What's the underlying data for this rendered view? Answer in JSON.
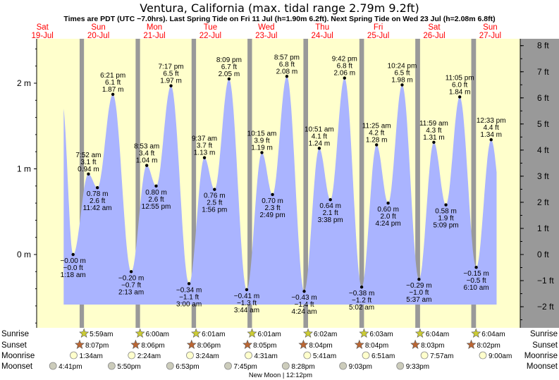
{
  "chart_data": {
    "type": "area",
    "title": "Ventura, California (max. tidal range 2.79m 9.2ft)",
    "subtitle": "Times are PDT (UTC −7.0hrs). Last Spring Tide on Fri 11 Jul (h=1.90m 6.2ft). Next Spring Tide on Wed 23 Jul (h=2.08m 6.8ft)",
    "x_range_days": [
      0,
      9
    ],
    "ylim_m": [
      -0.8,
      2.5
    ],
    "left_axis": {
      "unit": "m",
      "ticks": [
        {
          "v": 0,
          "label": "0 m"
        },
        {
          "v": 1,
          "label": "1 m"
        },
        {
          "v": 2,
          "label": "2 m"
        }
      ]
    },
    "right_axis": {
      "unit": "ft",
      "ticks": [
        {
          "v": -0.6096,
          "label": "−2 ft"
        },
        {
          "v": -0.3048,
          "label": "−1 ft"
        },
        {
          "v": 0,
          "label": "0 ft"
        },
        {
          "v": 0.3048,
          "label": "1 ft"
        },
        {
          "v": 0.6096,
          "label": "2 ft"
        },
        {
          "v": 0.9144,
          "label": "3 ft"
        },
        {
          "v": 1.2192,
          "label": "4 ft"
        },
        {
          "v": 1.524,
          "label": "5 ft"
        },
        {
          "v": 1.8288,
          "label": "6 ft"
        },
        {
          "v": 2.1336,
          "label": "7 ft"
        },
        {
          "v": 2.4384,
          "label": "8 ft"
        }
      ]
    },
    "days": [
      {
        "day": "Sat",
        "date": "19‑Jul"
      },
      {
        "day": "Sun",
        "date": "20‑Jul"
      },
      {
        "day": "Mon",
        "date": "21‑Jul"
      },
      {
        "day": "Tue",
        "date": "22‑Jul"
      },
      {
        "day": "Wed",
        "date": "23‑Jul"
      },
      {
        "day": "Thu",
        "date": "24‑Jul"
      },
      {
        "day": "Fri",
        "date": "25‑Jul"
      },
      {
        "day": "Sat",
        "date": "26‑Jul"
      },
      {
        "day": "Sun",
        "date": "27‑Jul"
      }
    ],
    "nights": [
      {
        "start": 1.171,
        "end": 1.249
      },
      {
        "start": 2.171,
        "end": 2.25
      },
      {
        "start": 3.171,
        "end": 3.251
      },
      {
        "start": 4.17,
        "end": 4.251
      },
      {
        "start": 5.169,
        "end": 5.252
      },
      {
        "start": 6.169,
        "end": 6.252
      },
      {
        "start": 7.168,
        "end": 7.253
      },
      {
        "start": 8.168,
        "end": 8.253
      }
    ],
    "curve_start_m": 1.77,
    "curve_end_m": 0.65,
    "extremes": [
      {
        "time": "1:18 am",
        "m": "−0.00 m",
        "ft": "−0.0 ft",
        "h": 0.0,
        "t": 1.054,
        "type": "low"
      },
      {
        "time": "7:52 am",
        "m": "0.94 m",
        "ft": "3.1 ft",
        "h": 0.94,
        "t": 1.328,
        "type": "high"
      },
      {
        "time": "11:42 am",
        "m": "0.78 m",
        "ft": "2.6 ft",
        "h": 0.78,
        "t": 1.488,
        "type": "low"
      },
      {
        "time": "6:21 pm",
        "m": "1.87 m",
        "ft": "6.1 ft",
        "h": 1.87,
        "t": 1.765,
        "type": "high"
      },
      {
        "time": "2:13 am",
        "m": "−0.20 m",
        "ft": "−0.7 ft",
        "h": -0.2,
        "t": 2.092,
        "type": "low"
      },
      {
        "time": "8:53 am",
        "m": "1.04 m",
        "ft": "3.4 ft",
        "h": 1.04,
        "t": 2.37,
        "type": "high"
      },
      {
        "time": "12:55 pm",
        "m": "0.80 m",
        "ft": "2.6 ft",
        "h": 0.8,
        "t": 2.538,
        "type": "low"
      },
      {
        "time": "7:17 pm",
        "m": "1.97 m",
        "ft": "6.5 ft",
        "h": 1.97,
        "t": 2.803,
        "type": "high"
      },
      {
        "time": "3:00 am",
        "m": "−0.34 m",
        "ft": "−1.1 ft",
        "h": -0.34,
        "t": 3.125,
        "type": "low"
      },
      {
        "time": "9:37 am",
        "m": "1.13 m",
        "ft": "3.7 ft",
        "h": 1.13,
        "t": 3.401,
        "type": "high"
      },
      {
        "time": "1:56 pm",
        "m": "0.76 m",
        "ft": "2.5 ft",
        "h": 0.76,
        "t": 3.581,
        "type": "low"
      },
      {
        "time": "8:09 pm",
        "m": "2.05 m",
        "ft": "6.7 ft",
        "h": 2.05,
        "t": 3.84,
        "type": "high"
      },
      {
        "time": "3:44 am",
        "m": "−0.41 m",
        "ft": "−1.3 ft",
        "h": -0.41,
        "t": 4.156,
        "type": "low"
      },
      {
        "time": "10:15 am",
        "m": "1.19 m",
        "ft": "3.9 ft",
        "h": 1.19,
        "t": 4.427,
        "type": "high"
      },
      {
        "time": "2:49 pm",
        "m": "0.70 m",
        "ft": "2.3 ft",
        "h": 0.7,
        "t": 4.617,
        "type": "low"
      },
      {
        "time": "8:57 pm",
        "m": "2.08 m",
        "ft": "6.8 ft",
        "h": 2.08,
        "t": 4.873,
        "type": "high"
      },
      {
        "time": "4:24 am",
        "m": "−0.43 m",
        "ft": "−1.4 ft",
        "h": -0.43,
        "t": 5.183,
        "type": "low"
      },
      {
        "time": "10:51 am",
        "m": "1.24 m",
        "ft": "4.1 ft",
        "h": 1.24,
        "t": 5.452,
        "type": "high"
      },
      {
        "time": "3:38 pm",
        "m": "0.64 m",
        "ft": "2.1 ft",
        "h": 0.64,
        "t": 5.651,
        "type": "low"
      },
      {
        "time": "9:42 pm",
        "m": "2.06 m",
        "ft": "6.8 ft",
        "h": 2.06,
        "t": 5.904,
        "type": "high"
      },
      {
        "time": "5:02 am",
        "m": "−0.38 m",
        "ft": "−1.2 ft",
        "h": -0.38,
        "t": 6.21,
        "type": "low"
      },
      {
        "time": "11:25 am",
        "m": "1.28 m",
        "ft": "4.2 ft",
        "h": 1.28,
        "t": 6.476,
        "type": "high"
      },
      {
        "time": "4:24 pm",
        "m": "0.60 m",
        "ft": "2.0 ft",
        "h": 0.6,
        "t": 6.683,
        "type": "low"
      },
      {
        "time": "10:24 pm",
        "m": "1.98 m",
        "ft": "6.5 ft",
        "h": 1.98,
        "t": 6.933,
        "type": "high"
      },
      {
        "time": "5:37 am",
        "m": "−0.29 m",
        "ft": "−1.0 ft",
        "h": -0.29,
        "t": 7.234,
        "type": "low"
      },
      {
        "time": "11:59 am",
        "m": "1.31 m",
        "ft": "4.3 ft",
        "h": 1.31,
        "t": 7.499,
        "type": "high"
      },
      {
        "time": "5:09 pm",
        "m": "0.58 m",
        "ft": "1.9 ft",
        "h": 0.58,
        "t": 7.715,
        "type": "low"
      },
      {
        "time": "11:05 pm",
        "m": "1.84 m",
        "ft": "6.0 ft",
        "h": 1.84,
        "t": 7.962,
        "type": "high"
      },
      {
        "time": "6:10 am",
        "m": "−0.15 m",
        "ft": "−0.5 ft",
        "h": -0.15,
        "t": 8.257,
        "type": "low"
      },
      {
        "time": "12:33 pm",
        "m": "1.34 m",
        "ft": "4.4 ft",
        "h": 1.34,
        "t": 8.523,
        "type": "high"
      }
    ],
    "sun_moon": {
      "rows": [
        "Sunrise",
        "Sunset",
        "Moonrise",
        "Moonset"
      ],
      "sunrise": [
        {
          "t": 1.249,
          "time": "5:59am"
        },
        {
          "t": 2.25,
          "time": "6:00am"
        },
        {
          "t": 3.251,
          "time": "6:01am"
        },
        {
          "t": 4.251,
          "time": "6:01am"
        },
        {
          "t": 5.252,
          "time": "6:02am"
        },
        {
          "t": 6.252,
          "time": "6:03am"
        },
        {
          "t": 7.253,
          "time": "6:04am"
        },
        {
          "t": 8.253,
          "time": "6:04am"
        }
      ],
      "sunset": [
        {
          "t": 1.171,
          "time": "8:07pm"
        },
        {
          "t": 2.171,
          "time": "8:06pm"
        },
        {
          "t": 3.171,
          "time": "8:06pm"
        },
        {
          "t": 4.17,
          "time": "8:05pm"
        },
        {
          "t": 5.169,
          "time": "8:04pm"
        },
        {
          "t": 6.169,
          "time": "8:04pm"
        },
        {
          "t": 7.168,
          "time": "8:03pm"
        },
        {
          "t": 8.168,
          "time": "8:02pm"
        }
      ],
      "moonrise": [
        {
          "t": 1.064,
          "time": "1:34am"
        },
        {
          "t": 2.1,
          "time": "2:24am"
        },
        {
          "t": 3.142,
          "time": "3:24am"
        },
        {
          "t": 4.188,
          "time": "4:31am"
        },
        {
          "t": 5.237,
          "time": "5:41am"
        },
        {
          "t": 6.285,
          "time": "6:51am"
        },
        {
          "t": 7.331,
          "time": "7:57am"
        },
        {
          "t": 8.375,
          "time": "9:00am"
        }
      ],
      "moonset": [
        {
          "t": 0.695,
          "time": "4:41pm"
        },
        {
          "t": 1.743,
          "time": "5:50pm"
        },
        {
          "t": 2.787,
          "time": "6:53pm"
        },
        {
          "t": 3.823,
          "time": "7:45pm"
        },
        {
          "t": 4.853,
          "time": "8:28pm"
        },
        {
          "t": 5.877,
          "time": "9:03pm"
        },
        {
          "t": 6.898,
          "time": "9:33pm"
        }
      ],
      "moonrise_phase": [
        "light",
        "light",
        "light",
        "light",
        "light",
        "light",
        "light",
        "light"
      ],
      "moonset_phase": [
        "gray",
        "gray",
        "gray",
        "gray",
        "gray",
        "gray",
        "gray"
      ],
      "note": "New Moon | 12:12pm",
      "note_t": 4.76
    },
    "colors": {
      "day": "#ffffcc",
      "night": "#999999",
      "water": "#aab4ff",
      "title_red": "#ff0000",
      "right_panel": "#999999"
    }
  }
}
